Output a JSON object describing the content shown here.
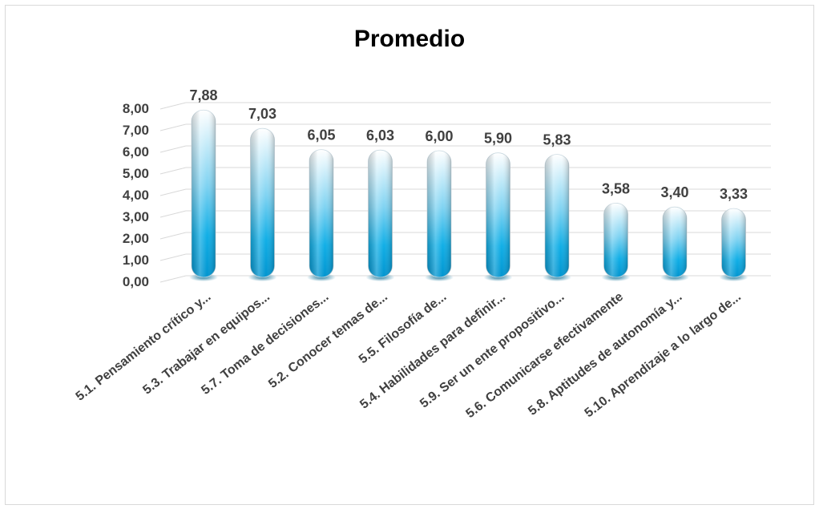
{
  "chart_data": {
    "type": "bar",
    "title": "Promedio",
    "categories": [
      "5.1. Pensamiento crítico y...",
      "5.3. Trabajar en equipos...",
      "5.7. Toma de decisiones...",
      "5.2. Conocer temas de...",
      "5.5. Filosofía de...",
      "5.4. Habilidades para definir...",
      "5.9. Ser un ente propositivo...",
      "5.6. Comunicarse efectivamente",
      "5.8. Aptitudes de autonomía y...",
      "5.10. Aprendizaje a lo largo de..."
    ],
    "values": [
      7.88,
      7.03,
      6.05,
      6.03,
      6.0,
      5.9,
      5.83,
      3.58,
      3.4,
      3.33
    ],
    "data_labels": [
      "7,88",
      "7,03",
      "6,05",
      "6,03",
      "6,00",
      "5,90",
      "5,83",
      "3,58",
      "3,40",
      "3,33"
    ],
    "y_ticks": [
      "0,00",
      "1,00",
      "2,00",
      "3,00",
      "4,00",
      "5,00",
      "6,00",
      "7,00",
      "8,00"
    ],
    "ylim": [
      0,
      8
    ],
    "grid": true,
    "legend": "none",
    "colors": {
      "bar_top": "#ffffff",
      "bar_bottom": "#00a3e0",
      "grid": "#d9d9d9",
      "text": "#404040"
    }
  }
}
